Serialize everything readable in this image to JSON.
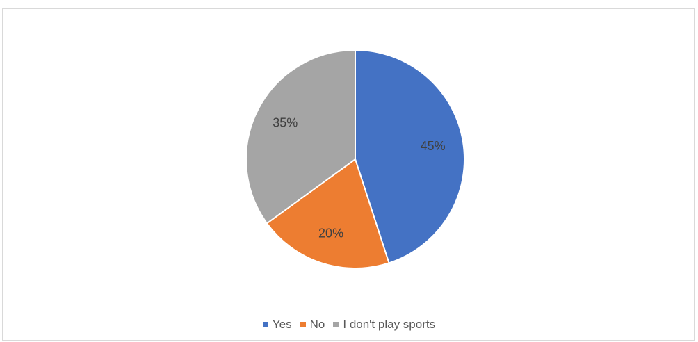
{
  "chart_data": {
    "type": "pie",
    "title": "",
    "categories": [
      "Yes",
      "No",
      "I don't play sports"
    ],
    "values": [
      45,
      20,
      35
    ],
    "unit": "%",
    "data_labels": [
      "45%",
      "20%",
      "35%"
    ],
    "colors": [
      "#4472c4",
      "#ed7d31",
      "#a5a5a5"
    ],
    "start_angle": "12 o'clock",
    "direction": "clockwise",
    "legend": {
      "position": "bottom",
      "items": [
        {
          "label": "Yes",
          "color": "#4472c4"
        },
        {
          "label": "No",
          "color": "#ed7d31"
        },
        {
          "label": "I don't play sports",
          "color": "#a5a5a5"
        }
      ]
    }
  }
}
